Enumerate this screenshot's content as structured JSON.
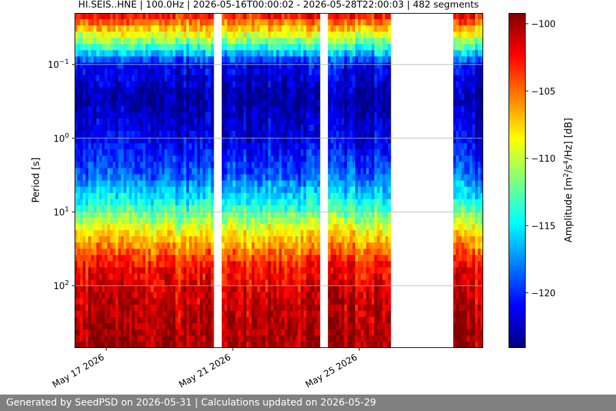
{
  "chart_data": {
    "type": "heatmap",
    "title": "HI.SEIS..HNE | 100.0Hz | 2026-05-16T00:00:02 - 2026-05-28T22:00:03 | 482 segments",
    "ylabel": "Period [s]",
    "colorbar_label_parts": [
      "Amplitude [m",
      "2",
      "/s",
      "4",
      "/Hz] [dB]"
    ],
    "yscale": "log",
    "yaxis_inverted": true,
    "ylim": [
      0.02,
      700
    ],
    "x_ticks": [
      {
        "day": 1,
        "label": "May 17 2026"
      },
      {
        "day": 5,
        "label": "May 21 2026"
      },
      {
        "day": 9,
        "label": "May 25 2026"
      }
    ],
    "y_ticks": [
      {
        "value": 0.1,
        "base": "10",
        "exp": "−1"
      },
      {
        "value": 1,
        "base": "10",
        "exp": "0"
      },
      {
        "value": 10,
        "base": "10",
        "exp": "1"
      },
      {
        "value": 100,
        "base": "10",
        "exp": "2"
      }
    ],
    "x_range_days": [
      0,
      12.917
    ],
    "data_gaps_days": [
      [
        4.37,
        4.67
      ],
      [
        7.77,
        8.02
      ],
      [
        9.95,
        12.0
      ]
    ],
    "colorbar": {
      "min": -124.1,
      "max": -99.2,
      "ticks": [
        -100,
        -105,
        -110,
        -115,
        -120
      ],
      "tick_labels": [
        "−100",
        "−105",
        "−110",
        "−115",
        "−120"
      ],
      "colormap": "jet"
    },
    "spectral_profile": [
      {
        "period": 0.02,
        "db": -102
      },
      {
        "period": 0.035,
        "db": -108
      },
      {
        "period": 0.06,
        "db": -114
      },
      {
        "period": 0.1,
        "db": -121
      },
      {
        "period": 0.3,
        "db": -123.5
      },
      {
        "period": 1,
        "db": -121.5
      },
      {
        "period": 3,
        "db": -119
      },
      {
        "period": 8,
        "db": -114
      },
      {
        "period": 20,
        "db": -108
      },
      {
        "period": 50,
        "db": -103
      },
      {
        "period": 150,
        "db": -101
      },
      {
        "period": 700,
        "db": -100
      }
    ],
    "grid": "horizontal"
  },
  "footer_text": "Generated by SeedPSD on 2026-05-31 | Calculations updated on 2026-05-29"
}
